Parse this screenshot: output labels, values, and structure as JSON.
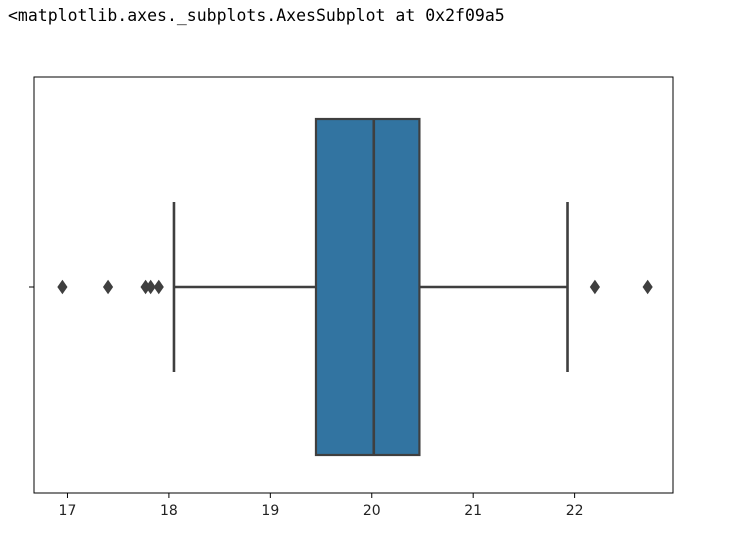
{
  "output_text": "<matplotlib.axes._subplots.AxesSubplot at 0x2f09a5",
  "chart_data": {
    "type": "box",
    "orientation": "horizontal",
    "xlim": [
      16.67,
      22.97
    ],
    "xticks": [
      17,
      18,
      19,
      20,
      21,
      22
    ],
    "xtick_labels": [
      "17",
      "18",
      "19",
      "20",
      "21",
      "22"
    ],
    "yticks": [
      0
    ],
    "xlabel": "",
    "ylabel": "",
    "box": {
      "whisker_low": 18.05,
      "q1": 19.45,
      "median": 20.02,
      "q3": 20.47,
      "whisker_high": 21.93
    },
    "outliers": [
      16.95,
      17.4,
      17.77,
      17.82,
      17.9,
      22.2,
      22.72
    ],
    "colors": {
      "box_fill": "#3274a1",
      "lines": "#3f3f3f",
      "axes": "#000000"
    }
  }
}
